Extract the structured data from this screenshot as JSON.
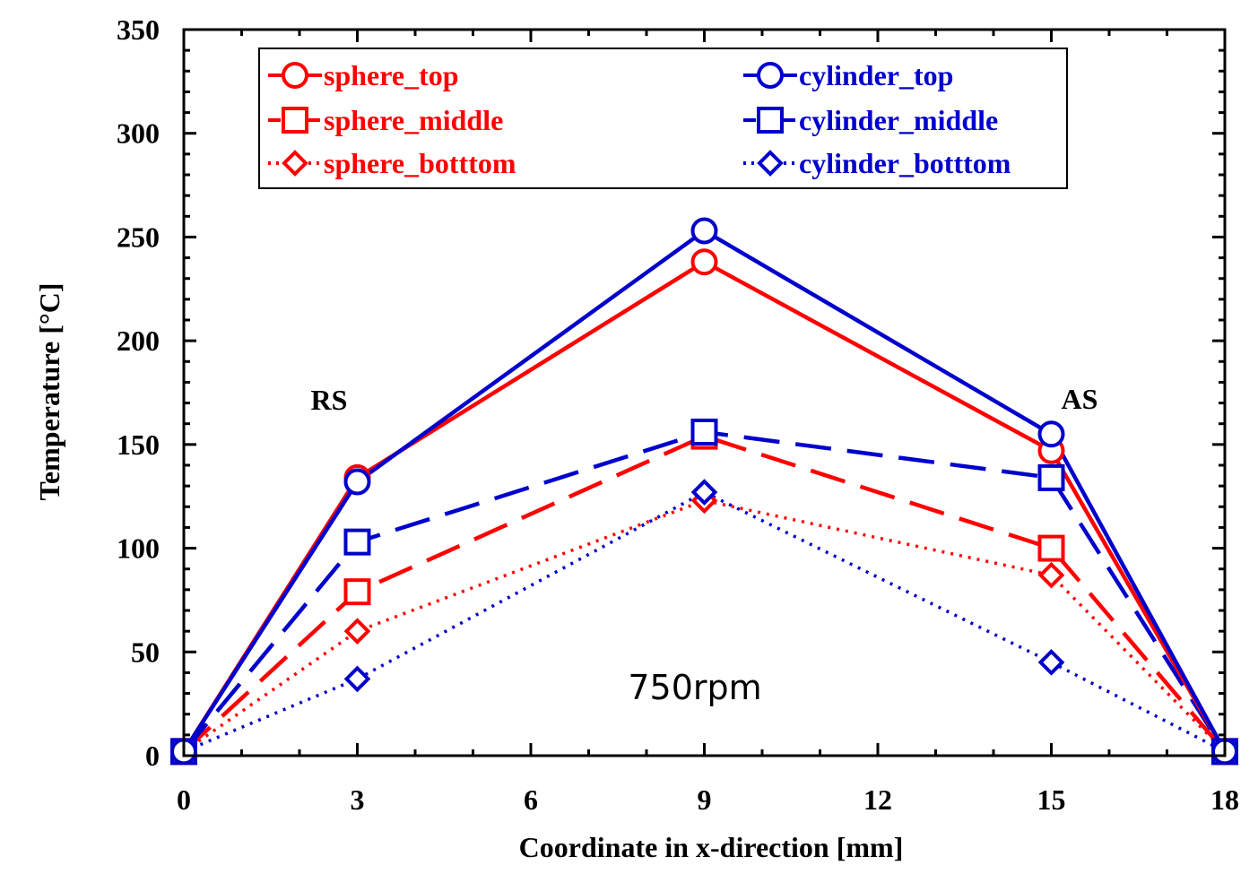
{
  "chart_data": {
    "type": "line",
    "xlabel": "Coordinate in x-direction [mm]",
    "ylabel": "Temperature [°C]",
    "xlim": [
      0,
      18
    ],
    "ylim": [
      0,
      350
    ],
    "xticks": [
      "0",
      "3",
      "6",
      "9",
      "12",
      "15",
      "18"
    ],
    "yticks": [
      "0",
      "50",
      "100",
      "150",
      "200",
      "250",
      "300",
      "350"
    ],
    "legend_position": "top",
    "annotations": {
      "rs": "RS",
      "as": "AS",
      "rpm": "750rpm"
    },
    "x": [
      0,
      3,
      9,
      15,
      18
    ],
    "series": [
      {
        "name": "sphere_top",
        "color": "#ff0000",
        "style": "solid",
        "marker": "circle",
        "values": [
          2,
          134,
          238,
          147,
          2
        ]
      },
      {
        "name": "sphere_middle",
        "color": "#ff0000",
        "style": "dashed",
        "marker": "square",
        "values": [
          2,
          79,
          154,
          100,
          2
        ]
      },
      {
        "name": "sphere_botttom",
        "color": "#ff0000",
        "style": "dotted",
        "marker": "diamond",
        "values": [
          2,
          60,
          123,
          87,
          2
        ]
      },
      {
        "name": "cylinder_top",
        "color": "#0000cc",
        "style": "solid",
        "marker": "circle",
        "values": [
          2,
          132,
          253,
          155,
          2
        ]
      },
      {
        "name": "cylinder_middle",
        "color": "#0000cc",
        "style": "dashed",
        "marker": "square",
        "values": [
          2,
          103,
          156,
          134,
          2
        ]
      },
      {
        "name": "cylinder_botttom",
        "color": "#0000cc",
        "style": "dotted",
        "marker": "diamond",
        "values": [
          2,
          37,
          127,
          45,
          2
        ]
      }
    ]
  }
}
